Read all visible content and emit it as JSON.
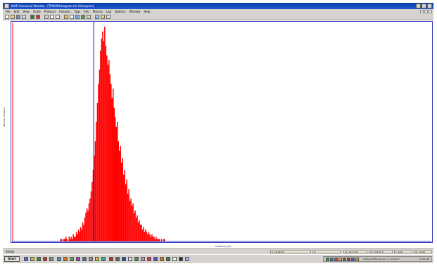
{
  "window": {
    "title": "NAIP Advanced Window - [TMIVMHistogram for Histogram]"
  },
  "menu": {
    "items": [
      "File",
      "Edit",
      "View",
      "Scale",
      "Protocol",
      "Analysis",
      "Tags",
      "Info",
      "Macros",
      "Log",
      "Options",
      "Window",
      "Help"
    ]
  },
  "toolbar": {
    "icons": [
      "new-icon",
      "open-icon",
      "save-icon",
      "print-icon",
      "play-icon",
      "stop-icon",
      "cut-icon",
      "copy-icon",
      "paste-icon",
      "zoom-icon",
      "cursor-icon",
      "grid-icon",
      "chart-icon",
      "settings-icon",
      "table-icon",
      "info-icon",
      "help-icon"
    ]
  },
  "plot": {
    "ylabel": "Number of Events",
    "xlabel": "Frequency (Hz)",
    "colors": {
      "bars": "#ff0000",
      "cursor": "#1a1a8c",
      "axis": "#3c3cc0"
    }
  },
  "chart_data": {
    "type": "bar",
    "xlim": [
      0,
      100
    ],
    "cursor_x": 19.5,
    "bins_start": 11.5,
    "bins_step": 0.25,
    "values": [
      1,
      1,
      0,
      1,
      1,
      2,
      1,
      0,
      2,
      1,
      2,
      1,
      3,
      2,
      2,
      4,
      3,
      5,
      4,
      6,
      5,
      8,
      7,
      10,
      12,
      14,
      13,
      16,
      18,
      21,
      25,
      30,
      36,
      42,
      50,
      58,
      66,
      72,
      80,
      85,
      88,
      84,
      90,
      82,
      78,
      74,
      76,
      70,
      66,
      60,
      64,
      56,
      52,
      48,
      50,
      42,
      38,
      40,
      33,
      35,
      28,
      30,
      24,
      26,
      20,
      22,
      17,
      18,
      15,
      16,
      12,
      13,
      10,
      11,
      8,
      9,
      7,
      7,
      5,
      6,
      4,
      5,
      4,
      3,
      4,
      3,
      2,
      3,
      2,
      2,
      1,
      2,
      1,
      1,
      1,
      0,
      1,
      0,
      1,
      1
    ]
  },
  "status": {
    "ready": "Ready",
    "field1": "X: 10.84 Hz",
    "field2": "X:",
    "field3": "dx: 110.2 Hz",
    "field4": "dy: 100.00 %",
    "field5": "x: 0.00",
    "field6": "xx: 76.00"
  },
  "taskbar": {
    "start_label": "Start",
    "tray_text": "Advanced Plus Source  4 - Anima 3",
    "clock": "10:41 AM"
  }
}
